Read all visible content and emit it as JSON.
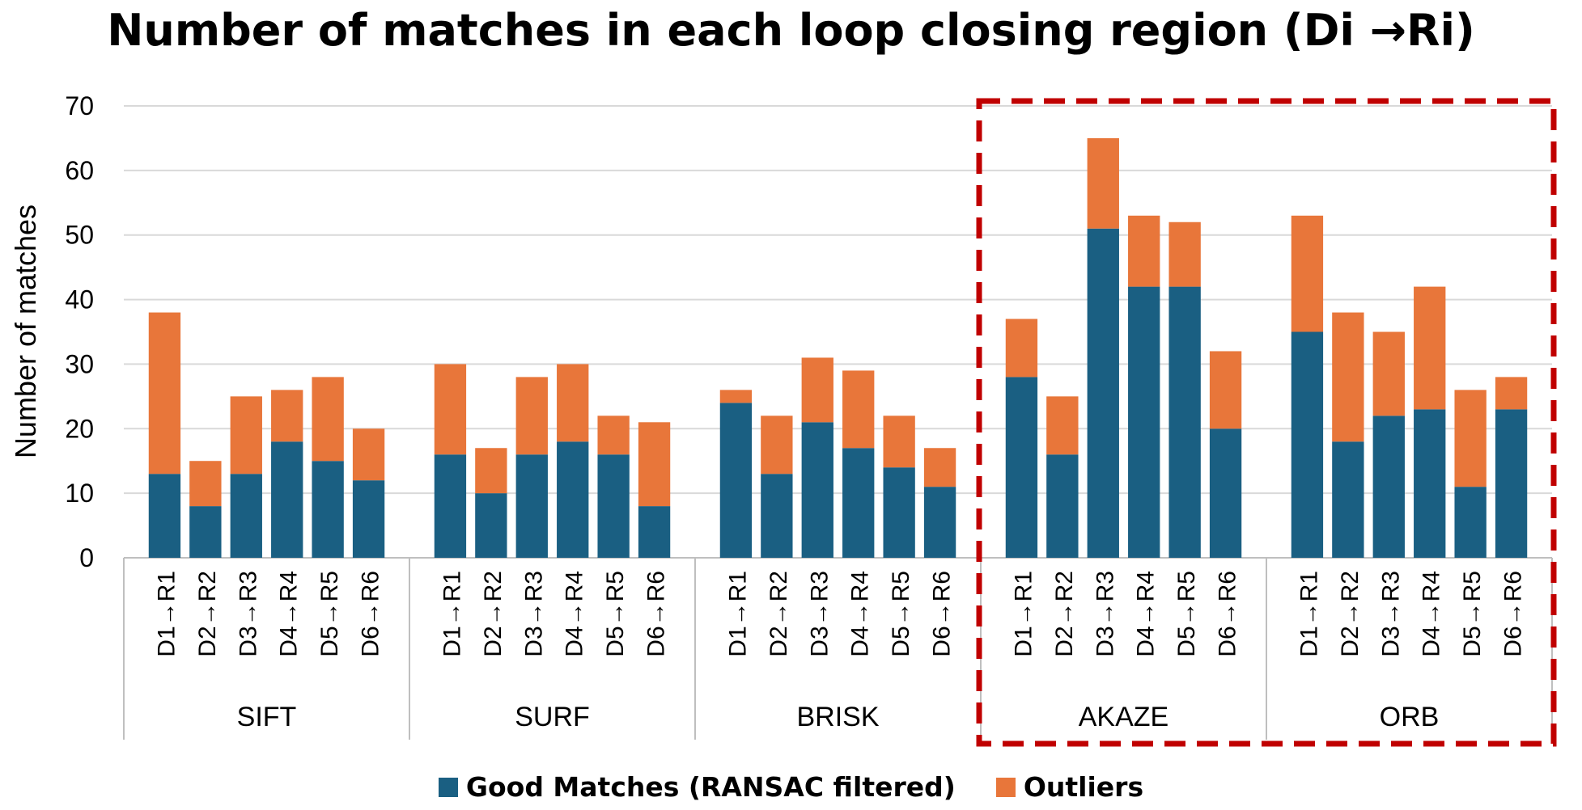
{
  "chart_data": {
    "type": "bar",
    "stacked": true,
    "title": "Number of matches in each loop closing region (Di →Ri)",
    "ylabel": "Number of matches",
    "xlabel": "",
    "ylim": [
      0,
      70
    ],
    "yticks": [
      0,
      10,
      20,
      30,
      40,
      50,
      60,
      70
    ],
    "grid": true,
    "legend_position": "bottom",
    "groups": [
      {
        "name": "SIFT",
        "categories": [
          "D1→R1",
          "D2→R2",
          "D3→R3",
          "D4→R4",
          "D5→R5",
          "D6→R6"
        ],
        "good": [
          13,
          8,
          13,
          18,
          15,
          12
        ],
        "outliers": [
          25,
          7,
          12,
          8,
          13,
          8
        ]
      },
      {
        "name": "SURF",
        "categories": [
          "D1→R1",
          "D2→R2",
          "D3→R3",
          "D4→R4",
          "D5→R5",
          "D6→R6"
        ],
        "good": [
          16,
          10,
          16,
          18,
          16,
          8
        ],
        "outliers": [
          14,
          7,
          12,
          12,
          6,
          13
        ]
      },
      {
        "name": "BRISK",
        "categories": [
          "D1→R1",
          "D2→R2",
          "D3→R3",
          "D4→R4",
          "D5→R5",
          "D6→R6"
        ],
        "good": [
          24,
          13,
          21,
          17,
          14,
          11
        ],
        "outliers": [
          2,
          9,
          10,
          12,
          8,
          6
        ]
      },
      {
        "name": "AKAZE",
        "categories": [
          "D1→R1",
          "D2→R2",
          "D3→R3",
          "D4→R4",
          "D5→R5",
          "D6→R6"
        ],
        "good": [
          28,
          16,
          51,
          42,
          42,
          20
        ],
        "outliers": [
          9,
          9,
          14,
          11,
          10,
          12
        ]
      },
      {
        "name": "ORB",
        "categories": [
          "D1→R1",
          "D2→R2",
          "D3→R3",
          "D4→R4",
          "D5→R5",
          "D6→R6"
        ],
        "good": [
          35,
          18,
          22,
          23,
          11,
          23
        ],
        "outliers": [
          18,
          20,
          13,
          19,
          15,
          5
        ]
      }
    ],
    "series": [
      {
        "name": "Good Matches (RANSAC filtered)",
        "key": "good",
        "color": "#1a5f82"
      },
      {
        "name": "Outliers",
        "key": "outliers",
        "color": "#e8763a"
      }
    ],
    "highlight": {
      "groups": [
        "AKAZE",
        "ORB"
      ],
      "color": "#c00000",
      "style": "dashed"
    }
  }
}
